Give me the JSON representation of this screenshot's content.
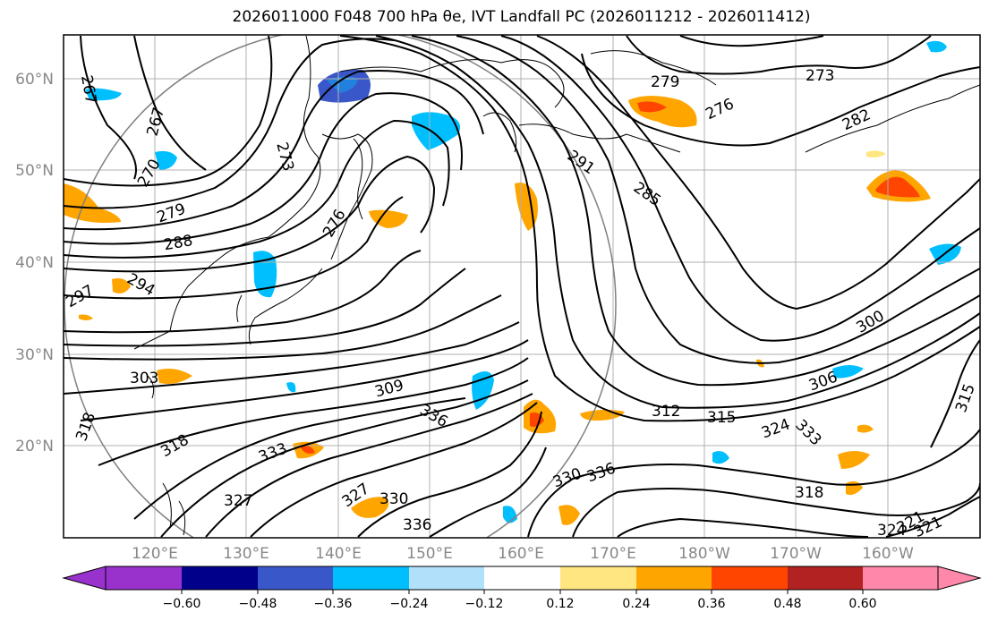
{
  "title": "2026011000 F048 700 hPa θe, IVT Landfall PC (2026011212 - 2026011412)",
  "map": {
    "lat_labels": [
      "60°N",
      "50°N",
      "40°N",
      "30°N",
      "20°N"
    ],
    "lon_labels": [
      "120°E",
      "130°E",
      "140°E",
      "150°E",
      "160°E",
      "170°E",
      "180°W",
      "170°W",
      "160°W"
    ],
    "contour_labels": [
      "267",
      "267",
      "270",
      "279",
      "288",
      "297",
      "294",
      "273",
      "276",
      "291",
      "285",
      "279",
      "276",
      "273",
      "282",
      "300",
      "306",
      "309",
      "312",
      "315",
      "324",
      "318",
      "318",
      "327",
      "330",
      "333",
      "336",
      "327",
      "303",
      "321",
      "324",
      "315",
      "333",
      "336",
      "330",
      "336",
      "318",
      "321"
    ]
  },
  "colorbar": {
    "ticks": [
      "−0.60",
      "−0.48",
      "−0.36",
      "−0.24",
      "−0.12",
      "0.12",
      "0.24",
      "0.36",
      "0.48",
      "0.60"
    ],
    "colors": [
      "#9932cc",
      "#00008b",
      "#3a57c9",
      "#00bfff",
      "#b0e0fa",
      "#ffffff",
      "#ffe680",
      "#ffa500",
      "#ff4500",
      "#b22222",
      "#ff88aa"
    ]
  }
}
